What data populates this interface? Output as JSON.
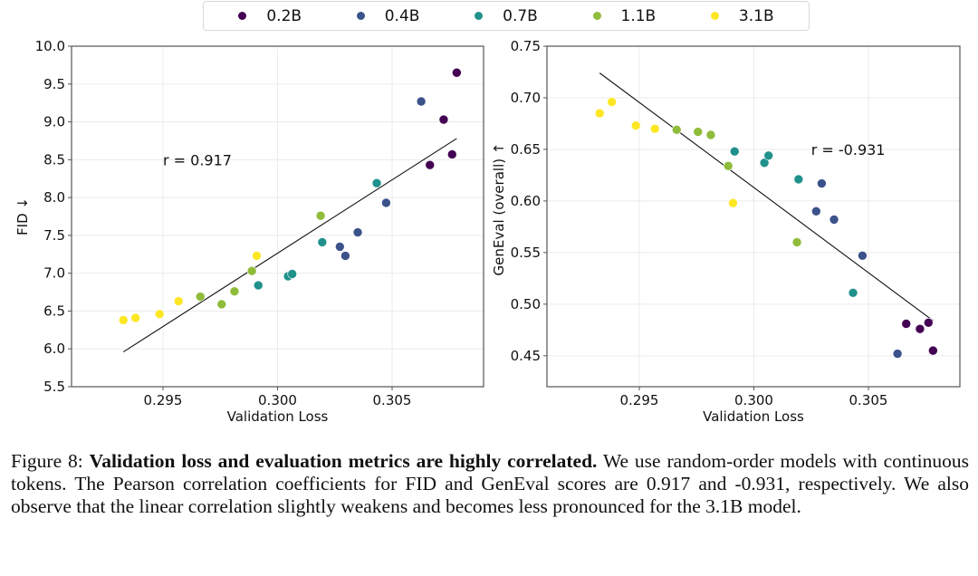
{
  "legend": [
    {
      "label": "0.2B",
      "color": "#440154"
    },
    {
      "label": "0.4B",
      "color": "#3b528b"
    },
    {
      "label": "0.7B",
      "color": "#21918c"
    },
    {
      "label": "1.1B",
      "color": "#8fbc3a"
    },
    {
      "label": "3.1B",
      "color": "#fde725"
    }
  ],
  "chart_data": [
    {
      "type": "scatter",
      "title": "",
      "xlabel": "Validation Loss",
      "ylabel": "FID ↓",
      "xlim": [
        0.2912,
        0.3091
      ],
      "ylim": [
        5.5,
        10.0
      ],
      "xticks": [
        0.295,
        0.3,
        0.305
      ],
      "xtick_labels": [
        "0.295",
        "0.300",
        "0.305"
      ],
      "yticks": [
        5.5,
        6.0,
        6.5,
        7.0,
        7.5,
        8.0,
        8.5,
        9.0,
        9.5,
        10.0
      ],
      "ytick_labels": [
        "5.5",
        "6.0",
        "6.5",
        "7.0",
        "7.5",
        "8.0",
        "8.5",
        "9.0",
        "9.5",
        "10.0"
      ],
      "grid": true,
      "annotation": "r = 0.917",
      "annotation_pos": [
        0.295,
        8.5
      ],
      "fit_line": {
        "x": [
          0.29327,
          0.30782
        ],
        "y": [
          5.96,
          8.78
        ]
      },
      "series": [
        {
          "name": "0.2B",
          "x": [
            0.30665,
            0.30725,
            0.30762,
            0.30782
          ],
          "y": [
            8.43,
            9.03,
            8.57,
            9.65
          ]
        },
        {
          "name": "0.4B",
          "x": [
            0.30272,
            0.30296,
            0.3035,
            0.30474,
            0.30627
          ],
          "y": [
            7.35,
            7.23,
            7.54,
            7.93,
            9.27
          ]
        },
        {
          "name": "0.7B",
          "x": [
            0.29916,
            0.30046,
            0.30064,
            0.30195,
            0.30433
          ],
          "y": [
            6.84,
            6.96,
            6.99,
            7.41,
            8.19
          ]
        },
        {
          "name": "1.1B",
          "x": [
            0.29663,
            0.29756,
            0.29812,
            0.29888,
            0.30188
          ],
          "y": [
            6.69,
            6.59,
            6.76,
            7.03,
            7.76
          ]
        },
        {
          "name": "3.1B",
          "x": [
            0.29327,
            0.2938,
            0.29485,
            0.29568,
            0.29909
          ],
          "y": [
            6.38,
            6.41,
            6.46,
            6.63,
            7.23
          ]
        }
      ]
    },
    {
      "type": "scatter",
      "title": "",
      "xlabel": "Validation Loss",
      "ylabel": "GenEval (overall) ↑",
      "xlim": [
        0.2912,
        0.3091
      ],
      "ylim": [
        0.42,
        0.75
      ],
      "xticks": [
        0.295,
        0.3,
        0.305
      ],
      "xtick_labels": [
        "0.295",
        "0.300",
        "0.305"
      ],
      "yticks": [
        0.45,
        0.5,
        0.55,
        0.6,
        0.65,
        0.7,
        0.75
      ],
      "ytick_labels": [
        "0.45",
        "0.50",
        "0.55",
        "0.60",
        "0.65",
        "0.70",
        "0.75"
      ],
      "grid": true,
      "annotation": "r = -0.931",
      "annotation_pos": [
        0.3025,
        0.65
      ],
      "fit_line": {
        "x": [
          0.29327,
          0.30782
        ],
        "y": [
          0.724,
          0.484
        ]
      },
      "series": [
        {
          "name": "0.2B",
          "x": [
            0.30665,
            0.30725,
            0.30762,
            0.30782
          ],
          "y": [
            0.481,
            0.476,
            0.482,
            0.455
          ]
        },
        {
          "name": "0.4B",
          "x": [
            0.30272,
            0.30296,
            0.3035,
            0.30474,
            0.30627
          ],
          "y": [
            0.59,
            0.617,
            0.582,
            0.547,
            0.452
          ]
        },
        {
          "name": "0.7B",
          "x": [
            0.29916,
            0.30046,
            0.30064,
            0.30195,
            0.30433
          ],
          "y": [
            0.648,
            0.637,
            0.644,
            0.621,
            0.511
          ]
        },
        {
          "name": "1.1B",
          "x": [
            0.29663,
            0.29756,
            0.29812,
            0.29888,
            0.30188
          ],
          "y": [
            0.669,
            0.667,
            0.664,
            0.634,
            0.56
          ]
        },
        {
          "name": "3.1B",
          "x": [
            0.29327,
            0.2938,
            0.29485,
            0.29568,
            0.29909
          ],
          "y": [
            0.685,
            0.696,
            0.673,
            0.67,
            0.598
          ]
        }
      ]
    }
  ],
  "caption": {
    "label": "Figure 8:",
    "bold": "Validation loss and evaluation metrics are highly correlated.",
    "text": "We use random-order models with continuous tokens. The Pearson correlation coefficients for FID and GenEval scores are 0.917 and -0.931, respectively. We also observe that the linear correlation slightly weakens and becomes less pronounced for the 3.1B model."
  }
}
